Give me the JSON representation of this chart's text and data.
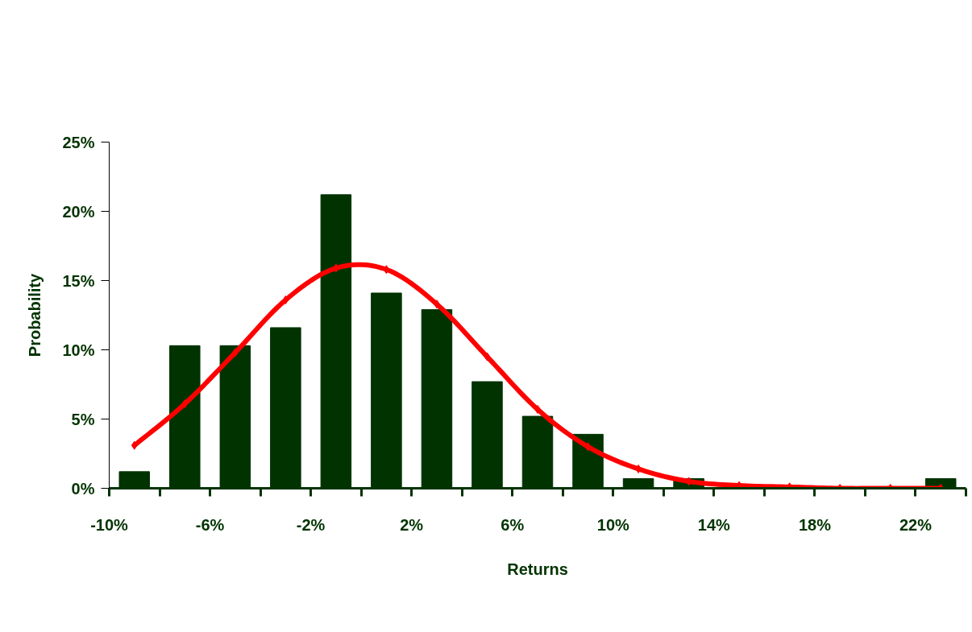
{
  "chart_data": {
    "type": "bar",
    "xlabel": "Returns",
    "ylabel": "Probability",
    "x": [
      -9,
      -7,
      -5,
      -3,
      -1,
      1,
      3,
      5,
      7,
      9,
      11,
      13,
      15,
      17,
      19,
      21,
      23
    ],
    "series": [
      {
        "color": "#003300",
        "values": [
          1.2,
          10.3,
          10.3,
          11.6,
          21.2,
          14.1,
          12.9,
          7.7,
          5.2,
          3.9,
          0.7,
          0.7,
          0,
          0,
          0,
          0,
          0.7
        ]
      },
      {
        "type": "line",
        "color": "#ff0000",
        "marker": "diamond",
        "line_style": "solid",
        "values": [
          3.1,
          6.1,
          9.8,
          13.6,
          15.9,
          15.8,
          13.3,
          9.5,
          5.7,
          3.0,
          1.4,
          0.5,
          0.2,
          0.1,
          0.0,
          0.0,
          0.0
        ]
      }
    ],
    "xlim": [
      -10,
      24
    ],
    "ylim": [
      0,
      25
    ],
    "xticks": [
      {
        "value": -10,
        "label": "-10%"
      },
      {
        "value": -8,
        "label": null
      },
      {
        "value": -6,
        "label": "-6%"
      },
      {
        "value": -4,
        "label": null
      },
      {
        "value": -2,
        "label": "-2%"
      },
      {
        "value": 0,
        "label": null
      },
      {
        "value": 2,
        "label": "2%"
      },
      {
        "value": 4,
        "label": null
      },
      {
        "value": 6,
        "label": "6%"
      },
      {
        "value": 8,
        "label": null
      },
      {
        "value": 10,
        "label": "10%"
      },
      {
        "value": 12,
        "label": null
      },
      {
        "value": 14,
        "label": "14%"
      },
      {
        "value": 16,
        "label": null
      },
      {
        "value": 18,
        "label": "18%"
      },
      {
        "value": 20,
        "label": null
      },
      {
        "value": 22,
        "label": "22%"
      },
      {
        "value": 24,
        "label": null
      }
    ],
    "yticks": [
      {
        "value": 0,
        "label": "0%"
      },
      {
        "value": 5,
        "label": "5%"
      },
      {
        "value": 10,
        "label": "10%"
      },
      {
        "value": 15,
        "label": "15%"
      },
      {
        "value": 20,
        "label": "20%"
      },
      {
        "value": 25,
        "label": "25%"
      }
    ],
    "grid": false
  }
}
